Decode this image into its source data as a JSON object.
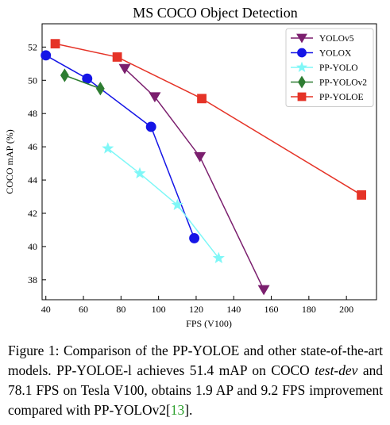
{
  "chart_data": {
    "type": "line",
    "title": "MS COCO Object Detection",
    "xlabel": "FPS (V100)",
    "ylabel": "COCO mAP (%)",
    "xlim": [
      38,
      216
    ],
    "ylim": [
      36.8,
      53.4
    ],
    "xticks": [
      40,
      60,
      80,
      100,
      120,
      140,
      160,
      180,
      200
    ],
    "yticks": [
      38,
      40,
      42,
      44,
      46,
      48,
      50,
      52
    ],
    "grid": false,
    "legend_position": "top-right",
    "series": [
      {
        "name": "YOLOv5",
        "color": "#7b1f6e",
        "marker": "triangle-down",
        "x": [
          82,
          98,
          122,
          156
        ],
        "y": [
          50.7,
          49.0,
          45.4,
          37.4
        ]
      },
      {
        "name": "YOLOX",
        "color": "#1515e6",
        "marker": "circle",
        "x": [
          40,
          62,
          96,
          119
        ],
        "y": [
          51.5,
          50.1,
          47.2,
          40.5
        ]
      },
      {
        "name": "PP-YOLO",
        "color": "#7ff7f7",
        "marker": "star",
        "x": [
          73,
          90,
          110,
          132
        ],
        "y": [
          45.9,
          44.4,
          42.5,
          39.3
        ]
      },
      {
        "name": "PP-YOLOv2",
        "color": "#2e7d32",
        "marker": "diamond",
        "x": [
          50,
          69
        ],
        "y": [
          50.3,
          49.5
        ]
      },
      {
        "name": "PP-YOLOE",
        "color": "#e53327",
        "marker": "square",
        "x": [
          45,
          78,
          123,
          208
        ],
        "y": [
          52.2,
          51.4,
          48.9,
          43.1
        ]
      }
    ]
  },
  "caption": {
    "prefix": "Figure 1: Comparison of the PP-YOLOE and other state-of-the-art models. PP-YOLOE-l achieves 51.4 mAP on COCO ",
    "italic": "test-dev",
    "middle": " and 78.1 FPS on Tesla V100, obtains 1.9 AP and 9.2 FPS improvement compared with PP-YOLOv2[",
    "ref": "13",
    "suffix": "]."
  }
}
